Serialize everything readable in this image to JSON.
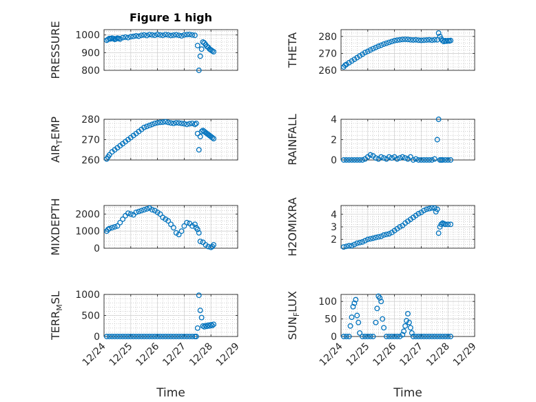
{
  "chart_data": [
    {
      "type": "scatter",
      "title": "Figure 1 high",
      "ylabel": "PRESSURE",
      "xlabel": "",
      "xlim": [
        0,
        5
      ],
      "ylim": [
        800,
        1030
      ],
      "yticks": [
        800,
        900,
        1000
      ],
      "xtick_labels": [
        "12/24",
        "12/25",
        "12/26",
        "12/27",
        "12/28",
        "12/29"
      ],
      "grid": true,
      "x": [
        0.1,
        0.15,
        0.2,
        0.25,
        0.3,
        0.35,
        0.4,
        0.45,
        0.5,
        0.55,
        0.6,
        0.7,
        0.8,
        0.9,
        1.0,
        1.1,
        1.2,
        1.3,
        1.4,
        1.5,
        1.6,
        1.7,
        1.8,
        1.9,
        2.0,
        2.1,
        2.2,
        2.3,
        2.4,
        2.5,
        2.6,
        2.7,
        2.8,
        2.9,
        3.0,
        3.1,
        3.2,
        3.3,
        3.4,
        3.5,
        3.55,
        3.6,
        3.65,
        3.7,
        3.75,
        3.8,
        3.85,
        3.9,
        3.95,
        4.0,
        4.05,
        4.1
      ],
      "values": [
        970,
        975,
        980,
        978,
        982,
        980,
        975,
        978,
        982,
        980,
        977,
        985,
        988,
        985,
        990,
        992,
        995,
        993,
        998,
        1000,
        997,
        1002,
        1000,
        998,
        1003,
        1000,
        998,
        1002,
        1000,
        997,
        999,
        1001,
        998,
        995,
        1000,
        1002,
        1003,
        1000,
        998,
        940,
        800,
        880,
        920,
        960,
        955,
        945,
        935,
        930,
        920,
        915,
        910,
        905
      ],
      "color": "#0072BD"
    },
    {
      "type": "scatter",
      "ylabel": "THETA",
      "xlabel": "",
      "xlim": [
        0,
        5
      ],
      "ylim": [
        260,
        284
      ],
      "yticks": [
        260,
        270,
        280
      ],
      "xtick_labels": [
        "12/24",
        "12/25",
        "12/26",
        "12/27",
        "12/28",
        "12/29"
      ],
      "grid": true,
      "x": [
        0.1,
        0.15,
        0.2,
        0.3,
        0.4,
        0.5,
        0.6,
        0.7,
        0.8,
        0.9,
        1.0,
        1.1,
        1.2,
        1.3,
        1.4,
        1.5,
        1.6,
        1.7,
        1.8,
        1.9,
        2.0,
        2.1,
        2.2,
        2.3,
        2.4,
        2.5,
        2.6,
        2.7,
        2.8,
        2.9,
        3.0,
        3.1,
        3.2,
        3.3,
        3.4,
        3.5,
        3.6,
        3.65,
        3.7,
        3.75,
        3.8,
        3.85,
        3.9,
        3.95,
        4.0,
        4.05,
        4.1
      ],
      "values": [
        262,
        263,
        263.5,
        264.5,
        265.5,
        266.5,
        267.5,
        268.5,
        269.5,
        270.5,
        271.2,
        272,
        272.8,
        273.5,
        274.2,
        274.8,
        275.5,
        276,
        276.5,
        277,
        277.5,
        277.8,
        278,
        278.2,
        278.3,
        278.2,
        278,
        277.9,
        278,
        277.8,
        277.7,
        277.8,
        277.9,
        278,
        277.8,
        278,
        278,
        282,
        280,
        278.5,
        277.5,
        277,
        277.5,
        277.2,
        277.5,
        277.3,
        277.6
      ],
      "color": "#0072BD"
    },
    {
      "type": "scatter",
      "ylabel": "AIR_TEMP",
      "xlabel": "",
      "xlim": [
        0,
        5
      ],
      "ylim": [
        260,
        280
      ],
      "yticks": [
        260,
        270,
        280
      ],
      "xtick_labels": [
        "12/24",
        "12/25",
        "12/26",
        "12/27",
        "12/28",
        "12/29"
      ],
      "grid": true,
      "x": [
        0.1,
        0.15,
        0.2,
        0.3,
        0.4,
        0.5,
        0.6,
        0.7,
        0.8,
        0.9,
        1.0,
        1.1,
        1.2,
        1.3,
        1.4,
        1.5,
        1.6,
        1.7,
        1.8,
        1.9,
        2.0,
        2.1,
        2.2,
        2.3,
        2.4,
        2.5,
        2.6,
        2.7,
        2.8,
        2.9,
        3.0,
        3.1,
        3.2,
        3.3,
        3.4,
        3.45,
        3.5,
        3.55,
        3.6,
        3.65,
        3.7,
        3.75,
        3.8,
        3.85,
        3.9,
        3.95,
        4.0,
        4.05,
        4.1
      ],
      "values": [
        260.5,
        261.5,
        262.5,
        264,
        265,
        266,
        267,
        268,
        269,
        270,
        271,
        272,
        273,
        274,
        275,
        276,
        276.5,
        277,
        277.5,
        278,
        278.3,
        278.5,
        278.6,
        278.8,
        278.5,
        278.2,
        278,
        278.3,
        278.2,
        278,
        277.8,
        277.5,
        277.8,
        278,
        277.5,
        278,
        273,
        265,
        271.5,
        274,
        274.5,
        274,
        273.5,
        273,
        272.5,
        272,
        271.5,
        271,
        270.5
      ],
      "color": "#0072BD"
    },
    {
      "type": "scatter",
      "ylabel": "RAINFALL",
      "xlabel": "",
      "xlim": [
        0,
        5
      ],
      "ylim": [
        0,
        4
      ],
      "yticks": [
        0,
        2,
        4
      ],
      "xtick_labels": [
        "12/24",
        "12/25",
        "12/26",
        "12/27",
        "12/28",
        "12/29"
      ],
      "grid": true,
      "x": [
        0.1,
        0.2,
        0.3,
        0.4,
        0.5,
        0.6,
        0.7,
        0.8,
        0.9,
        1.0,
        1.1,
        1.2,
        1.3,
        1.4,
        1.5,
        1.6,
        1.7,
        1.8,
        1.9,
        2.0,
        2.1,
        2.2,
        2.3,
        2.4,
        2.5,
        2.6,
        2.7,
        2.8,
        2.9,
        3.0,
        3.1,
        3.2,
        3.3,
        3.4,
        3.5,
        3.6,
        3.65,
        3.7,
        3.75,
        3.8,
        3.9,
        4.0,
        4.1
      ],
      "values": [
        0,
        0,
        0,
        0,
        0,
        0,
        0,
        0,
        0.1,
        0.3,
        0.5,
        0.4,
        0.2,
        0.1,
        0.3,
        0.2,
        0.1,
        0.3,
        0.2,
        0.3,
        0.1,
        0.2,
        0.3,
        0.2,
        0.1,
        0.3,
        0,
        0.1,
        0,
        0,
        0,
        0,
        0,
        0,
        0.1,
        2,
        4,
        0,
        0,
        0,
        0,
        0,
        0
      ],
      "color": "#0072BD"
    },
    {
      "type": "scatter",
      "ylabel": "MIXDEPTH",
      "xlabel": "",
      "xlim": [
        0,
        5
      ],
      "ylim": [
        0,
        2500
      ],
      "yticks": [
        0,
        1000,
        2000
      ],
      "xtick_labels": [
        "12/24",
        "12/25",
        "12/26",
        "12/27",
        "12/28",
        "12/29"
      ],
      "grid": true,
      "x": [
        0.1,
        0.15,
        0.2,
        0.3,
        0.4,
        0.5,
        0.6,
        0.7,
        0.8,
        0.9,
        1.0,
        1.1,
        1.2,
        1.3,
        1.4,
        1.5,
        1.6,
        1.7,
        1.8,
        1.9,
        2.0,
        2.1,
        2.2,
        2.3,
        2.4,
        2.5,
        2.6,
        2.7,
        2.8,
        2.9,
        3.0,
        3.1,
        3.2,
        3.3,
        3.4,
        3.45,
        3.5,
        3.55,
        3.6,
        3.7,
        3.8,
        3.9,
        4.0,
        4.05,
        4.1
      ],
      "values": [
        1000,
        1100,
        1150,
        1200,
        1250,
        1300,
        1500,
        1700,
        1900,
        2050,
        2000,
        1950,
        2100,
        2150,
        2200,
        2250,
        2300,
        2350,
        2250,
        2200,
        2100,
        2000,
        1800,
        1700,
        1600,
        1400,
        1200,
        900,
        800,
        1000,
        1300,
        1500,
        1450,
        1300,
        1400,
        1200,
        1100,
        900,
        400,
        350,
        200,
        100,
        50,
        100,
        200
      ],
      "color": "#0072BD"
    },
    {
      "type": "scatter",
      "ylabel": "H2OMIXRA",
      "xlabel": "",
      "xlim": [
        0,
        5
      ],
      "ylim": [
        1.3,
        4.7
      ],
      "yticks": [
        2,
        3,
        4
      ],
      "xtick_labels": [
        "12/24",
        "12/25",
        "12/26",
        "12/27",
        "12/28",
        "12/29"
      ],
      "grid": true,
      "x": [
        0.1,
        0.2,
        0.3,
        0.4,
        0.5,
        0.6,
        0.7,
        0.8,
        0.9,
        1.0,
        1.1,
        1.2,
        1.3,
        1.4,
        1.5,
        1.6,
        1.7,
        1.8,
        1.9,
        2.0,
        2.1,
        2.2,
        2.3,
        2.4,
        2.5,
        2.6,
        2.7,
        2.8,
        2.9,
        3.0,
        3.1,
        3.2,
        3.3,
        3.4,
        3.5,
        3.55,
        3.6,
        3.65,
        3.7,
        3.75,
        3.8,
        3.85,
        3.9,
        4.0,
        4.1
      ],
      "values": [
        1.4,
        1.45,
        1.5,
        1.5,
        1.6,
        1.7,
        1.75,
        1.8,
        1.9,
        2.0,
        2.05,
        2.1,
        2.15,
        2.2,
        2.25,
        2.35,
        2.4,
        2.45,
        2.55,
        2.7,
        2.85,
        3.0,
        3.1,
        3.3,
        3.45,
        3.6,
        3.75,
        3.9,
        4.05,
        4.15,
        4.3,
        4.4,
        4.45,
        4.5,
        4.5,
        4.2,
        4.4,
        2.5,
        3.0,
        3.2,
        3.3,
        3.25,
        3.2,
        3.2,
        3.2
      ],
      "color": "#0072BD"
    },
    {
      "type": "scatter",
      "ylabel": "TERR_MSL",
      "xlabel": "Time",
      "xlim": [
        0,
        5
      ],
      "ylim": [
        0,
        1000
      ],
      "yticks": [
        0,
        500,
        1000
      ],
      "xtick_labels": [
        "12/24",
        "12/25",
        "12/26",
        "12/27",
        "12/28",
        "12/29"
      ],
      "grid": true,
      "x": [
        0.1,
        0.2,
        0.3,
        0.4,
        0.5,
        0.6,
        0.7,
        0.8,
        0.9,
        1.0,
        1.1,
        1.2,
        1.3,
        1.4,
        1.5,
        1.6,
        1.7,
        1.8,
        1.9,
        2.0,
        2.1,
        2.2,
        2.3,
        2.4,
        2.5,
        2.6,
        2.7,
        2.8,
        2.9,
        3.0,
        3.1,
        3.2,
        3.3,
        3.4,
        3.45,
        3.5,
        3.55,
        3.6,
        3.65,
        3.7,
        3.75,
        3.8,
        3.85,
        3.9,
        3.95,
        4.0,
        4.05,
        4.1
      ],
      "values": [
        0,
        0,
        0,
        0,
        0,
        0,
        0,
        0,
        0,
        0,
        0,
        0,
        0,
        0,
        0,
        0,
        0,
        0,
        0,
        0,
        0,
        0,
        0,
        0,
        0,
        0,
        0,
        0,
        0,
        0,
        0,
        0,
        0,
        0,
        0,
        200,
        980,
        620,
        450,
        250,
        230,
        260,
        240,
        270,
        250,
        280,
        260,
        290
      ],
      "color": "#0072BD"
    },
    {
      "type": "scatter",
      "ylabel": "SUN_FLUX",
      "xlabel": "Time",
      "xlim": [
        0,
        5
      ],
      "ylim": [
        0,
        120
      ],
      "yticks": [
        0,
        50,
        100
      ],
      "xtick_labels": [
        "12/24",
        "12/25",
        "12/26",
        "12/27",
        "12/28",
        "12/29"
      ],
      "grid": true,
      "x": [
        0.1,
        0.2,
        0.3,
        0.35,
        0.4,
        0.45,
        0.5,
        0.55,
        0.6,
        0.65,
        0.7,
        0.8,
        0.9,
        1.0,
        1.1,
        1.2,
        1.3,
        1.35,
        1.4,
        1.45,
        1.5,
        1.55,
        1.6,
        1.7,
        1.8,
        1.9,
        2.0,
        2.1,
        2.2,
        2.3,
        2.35,
        2.4,
        2.45,
        2.5,
        2.55,
        2.6,
        2.65,
        2.7,
        2.8,
        2.9,
        3.0,
        3.1,
        3.2,
        3.3,
        3.4,
        3.5,
        3.6,
        3.7,
        3.8,
        3.9,
        4.0,
        4.1
      ],
      "values": [
        0,
        0,
        0,
        30,
        55,
        85,
        95,
        105,
        60,
        40,
        10,
        0,
        0,
        0,
        0,
        0,
        40,
        80,
        115,
        110,
        100,
        50,
        25,
        0,
        0,
        0,
        0,
        0,
        0,
        5,
        15,
        30,
        45,
        65,
        40,
        25,
        10,
        0,
        0,
        0,
        0,
        0,
        0,
        0,
        0,
        0,
        0,
        0,
        0,
        0,
        0,
        0
      ],
      "color": "#0072BD"
    }
  ]
}
